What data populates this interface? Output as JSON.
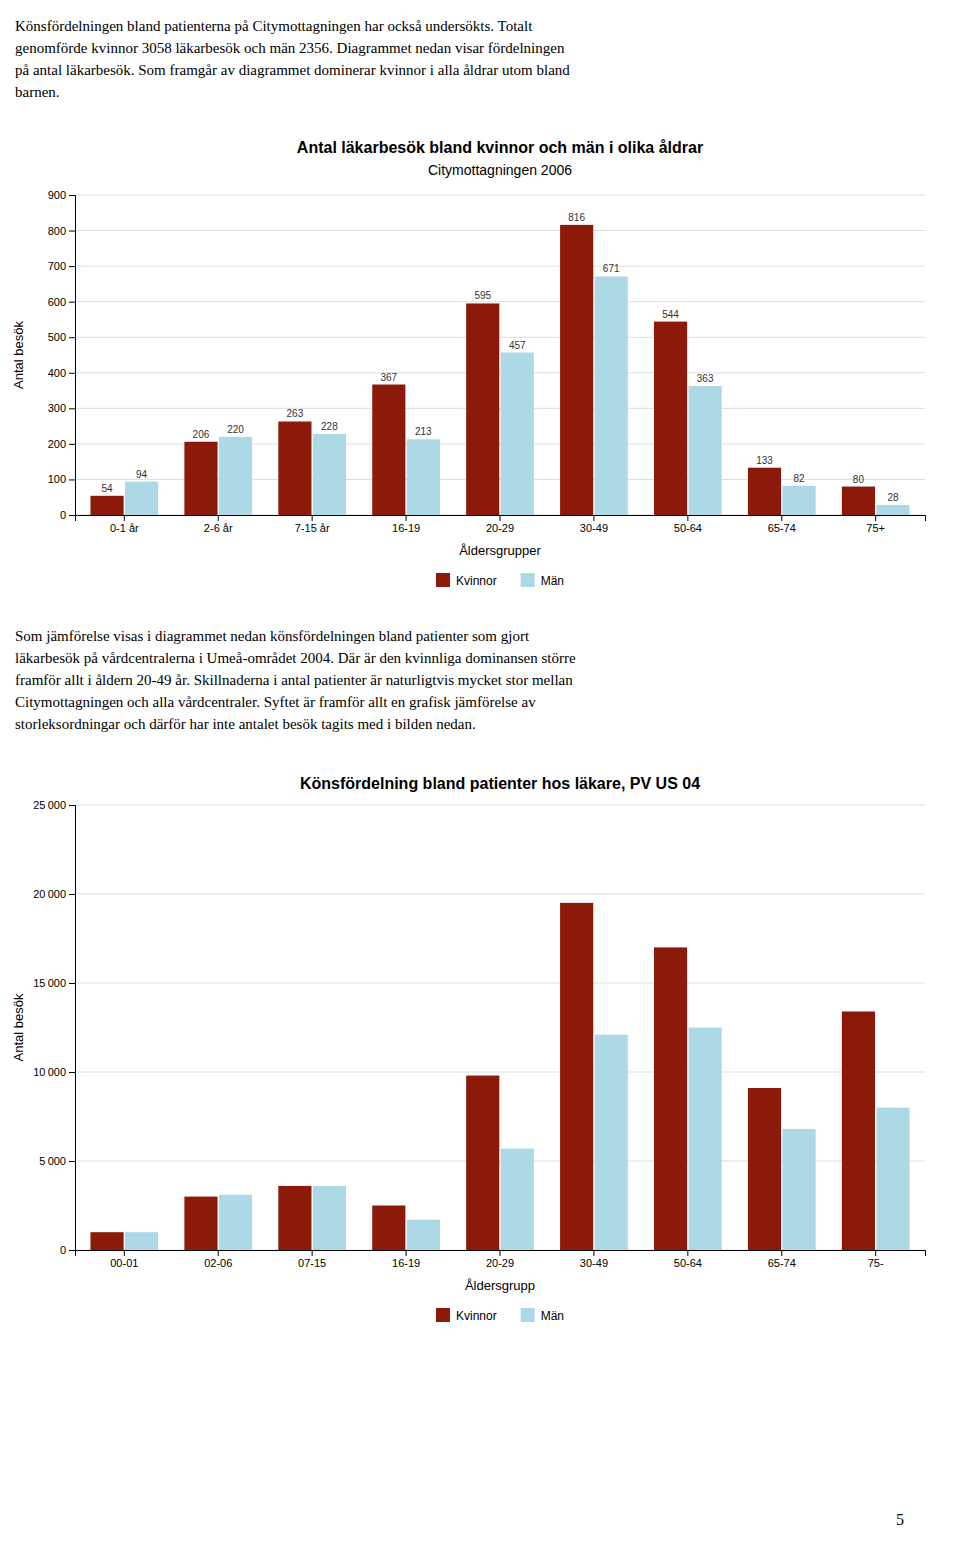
{
  "text_intro": [
    "Könsfördelningen bland patienterna på Citymottagningen har också undersökts. Totalt",
    "genomförde kvinnor 3058 läkarbesök och män 2356. Diagrammet nedan visar fördelningen",
    "på antal läkarbesök. Som framgår av diagrammet dominerar kvinnor i alla åldrar utom bland",
    "barnen."
  ],
  "text_middle": [
    "Som jämförelse visas i diagrammet nedan könsfördelningen bland patienter som gjort",
    "läkarbesök på vårdcentralerna i Umeå-området 2004. Där är den kvinnliga dominansen större",
    "framför allt i åldern 20-49 år. Skillnaderna i antal patienter är naturligtvis mycket stor mellan",
    "Citymottagningen och alla vårdcentraler. Syftet är framför allt en grafisk jämförelse av",
    "storleksordningar och därför har inte antalet besök tagits med i bilden nedan."
  ],
  "page_number": "5",
  "chart_data": [
    {
      "type": "bar",
      "title": "Antal läkarbesök bland kvinnor och män i olika åldrar",
      "subtitle": "Citymottagningen 2006",
      "categories": [
        "0-1 år",
        "2-6 år",
        "7-15 år",
        "16-19",
        "20-29",
        "30-49",
        "50-64",
        "65-74",
        "75+"
      ],
      "series": [
        {
          "name": "Kvinnor",
          "color": "#8B1A0A",
          "values": [
            54,
            206,
            263,
            367,
            595,
            816,
            544,
            133,
            80
          ]
        },
        {
          "name": "Män",
          "color": "#ADD8E6",
          "values": [
            94,
            220,
            228,
            213,
            457,
            671,
            363,
            82,
            28
          ]
        }
      ],
      "xlabel": "Åldersgrupper",
      "ylabel": "Antal besök",
      "ylim": [
        0,
        900
      ],
      "yticks": [
        0,
        100,
        200,
        300,
        400,
        500,
        600,
        700,
        800,
        900
      ],
      "grid": true,
      "legend": "bottom",
      "data_labels": true
    },
    {
      "type": "bar",
      "title": "Könsfördelning bland patienter hos läkare, PV US 04",
      "categories": [
        "00-01",
        "02-06",
        "07-15",
        "16-19",
        "20-29",
        "30-49",
        "50-64",
        "65-74",
        "75-"
      ],
      "series": [
        {
          "name": "Kvinnor",
          "color": "#8B1A0A",
          "values": [
            1000,
            3000,
            3600,
            2500,
            9800,
            19500,
            17000,
            9100,
            13400
          ]
        },
        {
          "name": "Män",
          "color": "#ADD8E6",
          "values": [
            1000,
            3100,
            3600,
            1700,
            5700,
            12100,
            12500,
            6800,
            8000
          ]
        }
      ],
      "xlabel": "Åldersgrupp",
      "ylabel": "Antal besök",
      "ylim": [
        0,
        25000
      ],
      "yticks": [
        0,
        {
          "value": 5000,
          "label": "5 000"
        },
        {
          "value": 10000,
          "label": "10 000"
        },
        {
          "value": 15000,
          "label": "15 000"
        },
        {
          "value": 20000,
          "label": "20 000"
        },
        {
          "value": 25000,
          "label": "25 000"
        }
      ],
      "grid": true,
      "legend": "bottom",
      "data_labels": false
    }
  ]
}
